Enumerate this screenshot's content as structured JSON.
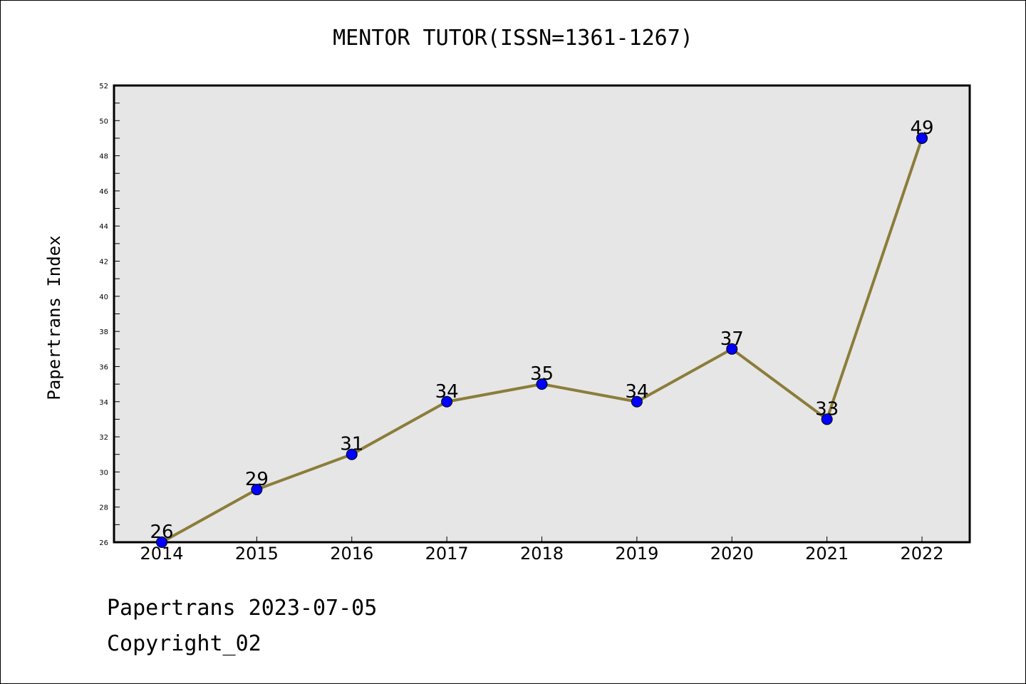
{
  "title": "MENTOR TUTOR(ISSN=1361-1267)",
  "footer": {
    "line1": "Papertrans 2023-07-05",
    "line2": "Copyright_02"
  },
  "colors": {
    "line": "#8B7D3A",
    "marker": "#0000FF",
    "plot_bg": "#E6E6E6"
  },
  "chart_data": {
    "type": "line",
    "title": "MENTOR TUTOR(ISSN=1361-1267)",
    "xlabel": "",
    "ylabel": "Papertrans Index",
    "ylim": [
      26,
      52
    ],
    "yticks": [
      26,
      28,
      30,
      32,
      34,
      36,
      38,
      40,
      42,
      44,
      46,
      48,
      50,
      52
    ],
    "categories": [
      "2014",
      "2015",
      "2016",
      "2017",
      "2018",
      "2019",
      "2020",
      "2021",
      "2022"
    ],
    "series": [
      {
        "values": [
          26,
          29,
          31,
          34,
          35,
          34,
          37,
          33,
          49
        ]
      }
    ],
    "data_labels": [
      "26",
      "29",
      "31",
      "34",
      "35",
      "34",
      "37",
      "33",
      "49"
    ],
    "grid": false,
    "legend": "none"
  }
}
